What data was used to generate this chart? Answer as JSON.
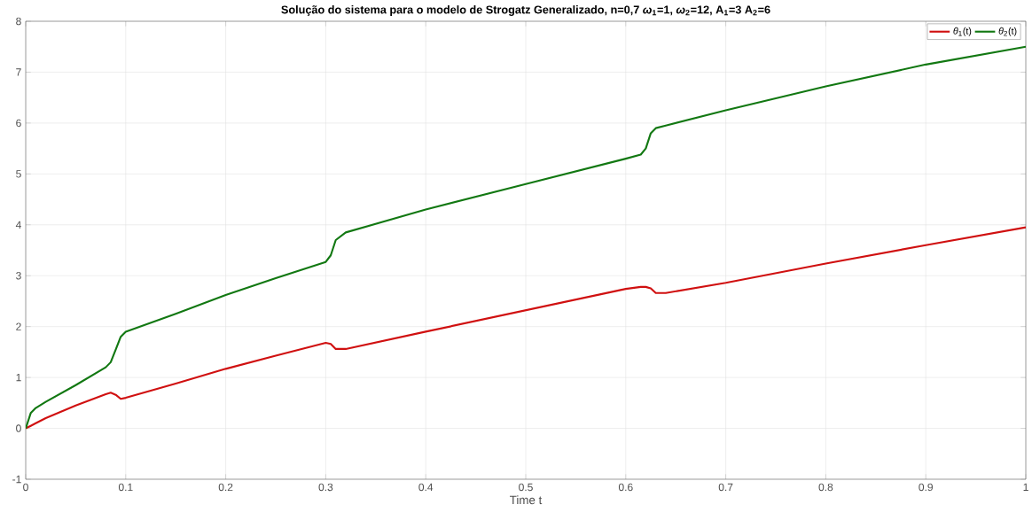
{
  "chart_data": {
    "type": "line",
    "title": "Solução do sistema para o modelo de Strogatz Generalizado, n=0,7 *ω*$_{1}$=1, *ω*$_{2}$=12, A$_{1}$=3 A$_{2}$=6",
    "xlabel": "Time t",
    "x": [
      0,
      0.005,
      0.01,
      0.02,
      0.05,
      0.08,
      0.085,
      0.09,
      0.095,
      0.1,
      0.15,
      0.2,
      0.25,
      0.3,
      0.305,
      0.31,
      0.32,
      0.4,
      0.5,
      0.6,
      0.615,
      0.62,
      0.625,
      0.63,
      0.64,
      0.7,
      0.8,
      0.9,
      1.0
    ],
    "series": [
      {
        "name": "*θ*$_{1}$(t)",
        "color": "#d01010",
        "values": [
          0,
          0.05,
          0.1,
          0.2,
          0.45,
          0.67,
          0.7,
          0.66,
          0.58,
          0.6,
          0.88,
          1.17,
          1.43,
          1.68,
          1.66,
          1.56,
          1.56,
          1.9,
          2.32,
          2.74,
          2.78,
          2.78,
          2.75,
          2.66,
          2.66,
          2.86,
          3.24,
          3.6,
          3.95
        ]
      },
      {
        "name": "*θ*$_{2}$(t)",
        "color": "#127812",
        "values": [
          0,
          0.3,
          0.4,
          0.52,
          0.85,
          1.2,
          1.3,
          1.55,
          1.8,
          1.9,
          2.25,
          2.62,
          2.95,
          3.27,
          3.4,
          3.7,
          3.85,
          4.3,
          4.8,
          5.3,
          5.38,
          5.5,
          5.8,
          5.9,
          5.95,
          6.25,
          6.72,
          7.15,
          7.5
        ]
      }
    ],
    "xlim": [
      0,
      1
    ],
    "ylim": [
      -1,
      8
    ],
    "xticks": [
      0,
      0.1,
      0.2,
      0.3,
      0.4,
      0.5,
      0.6,
      0.7,
      0.8,
      0.9,
      1
    ],
    "yticks": [
      -1,
      0,
      1,
      2,
      3,
      4,
      5,
      6,
      7,
      8
    ],
    "grid": true,
    "legend": "top right",
    "line_style": "solid",
    "marker": "none"
  }
}
